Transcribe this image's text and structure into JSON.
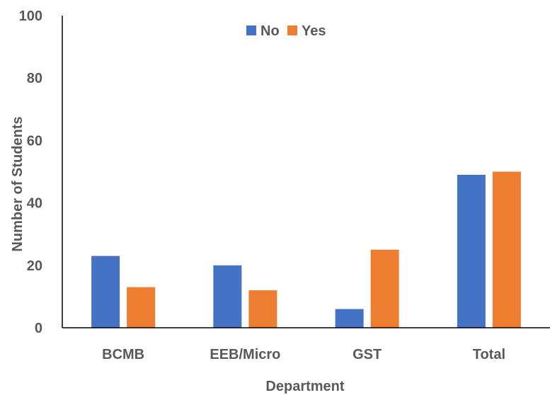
{
  "chart_data": {
    "type": "bar",
    "categories": [
      "BCMB",
      "EEB/Micro",
      "GST",
      "Total"
    ],
    "series": [
      {
        "name": "No",
        "values": [
          23,
          20,
          6,
          49
        ],
        "color": "#4472C4"
      },
      {
        "name": "Yes",
        "values": [
          13,
          12,
          25,
          50
        ],
        "color": "#ED7D31"
      }
    ],
    "xlabel": "Department",
    "ylabel": "Number of Students",
    "ylim": [
      0,
      100
    ],
    "yticks": [
      "0",
      "20",
      "40",
      "60",
      "80",
      "100"
    ],
    "grid": false,
    "legend_position": "top"
  }
}
